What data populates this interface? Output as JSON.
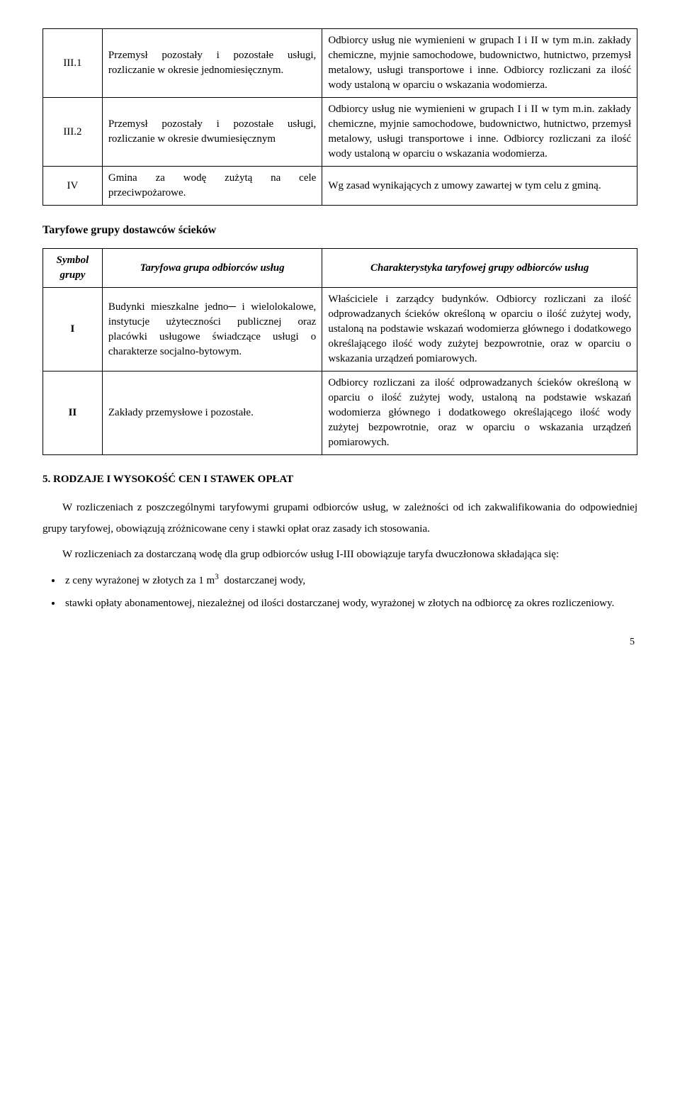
{
  "table1": {
    "rows": [
      {
        "sym": "III.1",
        "mid": "Przemysł pozostały i pozostałe usługi, rozliczanie w okresie jednomiesięcznym.",
        "desc": "Odbiorcy usług nie wymienieni w grupach I i II w tym m.in. zakłady chemiczne, myjnie samochodowe, budownictwo, hutnictwo, przemysł metalowy, usługi transportowe i inne. Odbiorcy rozliczani za ilość wody ustaloną w oparciu o wskazania wodomierza."
      },
      {
        "sym": "III.2",
        "mid": "Przemysł pozostały i pozostałe usługi, rozliczanie w okresie dwumiesięcznym",
        "desc": "Odbiorcy usług nie wymienieni w grupach I i II w tym m.in. zakłady chemiczne, myjnie samochodowe, budownictwo, hutnictwo, przemysł metalowy, usługi transportowe i inne. Odbiorcy rozliczani za ilość wody ustaloną w oparciu o wskazania wodomierza."
      },
      {
        "sym": "IV",
        "mid": "Gmina za wodę zużytą na cele przeciwpożarowe.",
        "desc": "Wg zasad wynikających z umowy zawartej w tym celu z gminą."
      }
    ]
  },
  "section_sub_title": "Taryfowe grupy dostawców ścieków",
  "table2": {
    "headers": {
      "sym": "Symbol grupy",
      "mid": "Taryfowa grupa odbiorców usług",
      "desc": "Charakterystyka taryfowej grupy odbiorców usług"
    },
    "rows": [
      {
        "sym": "I",
        "mid": "Budynki mieszkalne jedno─ i wielolokalowe, instytucje użyteczności publicznej oraz placówki usługowe świadczące usługi o charakterze socjalno-bytowym.",
        "desc": "Właściciele i zarządcy budynków. Odbiorcy rozliczani za ilość odprowadzanych ścieków określoną w oparciu o ilość zużytej wody, ustaloną na podstawie wskazań wodomierza głównego i dodatkowego określającego ilość wody zużytej bezpowrotnie, oraz w oparciu o wskazania urządzeń pomiarowych."
      },
      {
        "sym": "II",
        "mid": "Zakłady przemysłowe i pozostałe.",
        "desc": "Odbiorcy rozliczani za ilość odprowadzanych ścieków określoną w oparciu o ilość zużytej wody, ustaloną na podstawie wskazań wodomierza głównego i dodatkowego określającego ilość wody zużytej bezpowrotnie, oraz w oparciu o wskazania urządzeń pomiarowych."
      }
    ]
  },
  "section5_title": "5. RODZAJE I WYSOKOŚĆ CEN I STAWEK OPŁAT",
  "para1": "W rozliczeniach z poszczególnymi taryfowymi grupami odbiorców usług, w zależności od ich zakwalifikowania do odpowiedniej grupy taryfowej, obowiązują zróżnicowane ceny i stawki opłat oraz zasady ich stosowania.",
  "para2": "W rozliczeniach za dostarczaną wodę dla grup odbiorców usług I-III obowiązuje taryfa dwuczłonowa składająca się:",
  "bullets": [
    "z ceny wyrażonej w złotych za 1 m³  dostarczanej wody,",
    "stawki opłaty abonamentowej, niezależnej od ilości dostarczanej wody, wyrażonej w złotych na odbiorcę za okres rozliczeniowy."
  ],
  "page_number": "5"
}
